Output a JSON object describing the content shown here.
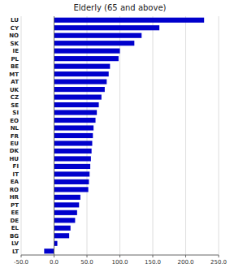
{
  "chart_data": {
    "type": "bar",
    "orientation": "horizontal",
    "title": "Elderly (65 and above)",
    "categories": [
      "LU",
      "CY",
      "NO",
      "SK",
      "IE",
      "PL",
      "BE",
      "MT",
      "AT",
      "UK",
      "CZ",
      "SE",
      "SI",
      "EO",
      "NL",
      "FR",
      "EU",
      "DK",
      "HU",
      "FI",
      "IT",
      "EA",
      "RO",
      "HR",
      "PT",
      "EE",
      "DE",
      "EL",
      "BG",
      "LV",
      "LT"
    ],
    "values": [
      228,
      160,
      133,
      122,
      100,
      98,
      85,
      83,
      80,
      77,
      72,
      68,
      65,
      63,
      60,
      59,
      58,
      57,
      56,
      55,
      54,
      53,
      52,
      40,
      38,
      35,
      32,
      25,
      23,
      5,
      -15
    ],
    "color": "#0000CC",
    "xlim": [
      -50,
      250
    ],
    "xticks": [
      {
        "value": -50,
        "label": "-50.0"
      },
      {
        "value": 0,
        "label": "0.0"
      },
      {
        "value": 50,
        "label": "50.0"
      },
      {
        "value": 100,
        "label": "100.0"
      },
      {
        "value": 150,
        "label": "150.0"
      },
      {
        "value": 200,
        "label": "200.0"
      },
      {
        "value": 250,
        "label": "250.0"
      }
    ],
    "grid": true
  }
}
